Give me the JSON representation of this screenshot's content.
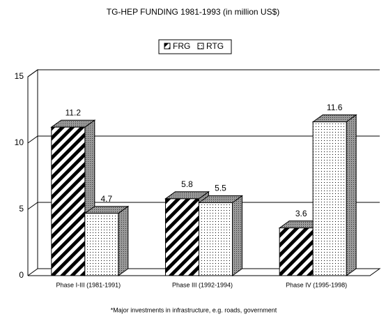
{
  "chart_data": {
    "type": "bar",
    "title": "TG-HEP FUNDING 1981-1993 (in million US$)",
    "categories": [
      "Phase I-III (1981-1991)",
      "Phase III (1992-1994)",
      "Phase IV (1995-1998)"
    ],
    "series": [
      {
        "name": "FRG",
        "color": "#000000",
        "pattern": "hatch",
        "values": [
          11.2,
          5.8,
          3.6
        ]
      },
      {
        "name": "RTG",
        "color": "#000000",
        "pattern": "dots",
        "values": [
          4.7,
          5.5,
          11.6
        ]
      }
    ],
    "ylim": [
      0,
      15
    ],
    "yticks": [
      0,
      5,
      10,
      15
    ],
    "grid": true,
    "legend": "top",
    "footnote": "*Major investments in infrastructure, e.g. roads, government"
  }
}
